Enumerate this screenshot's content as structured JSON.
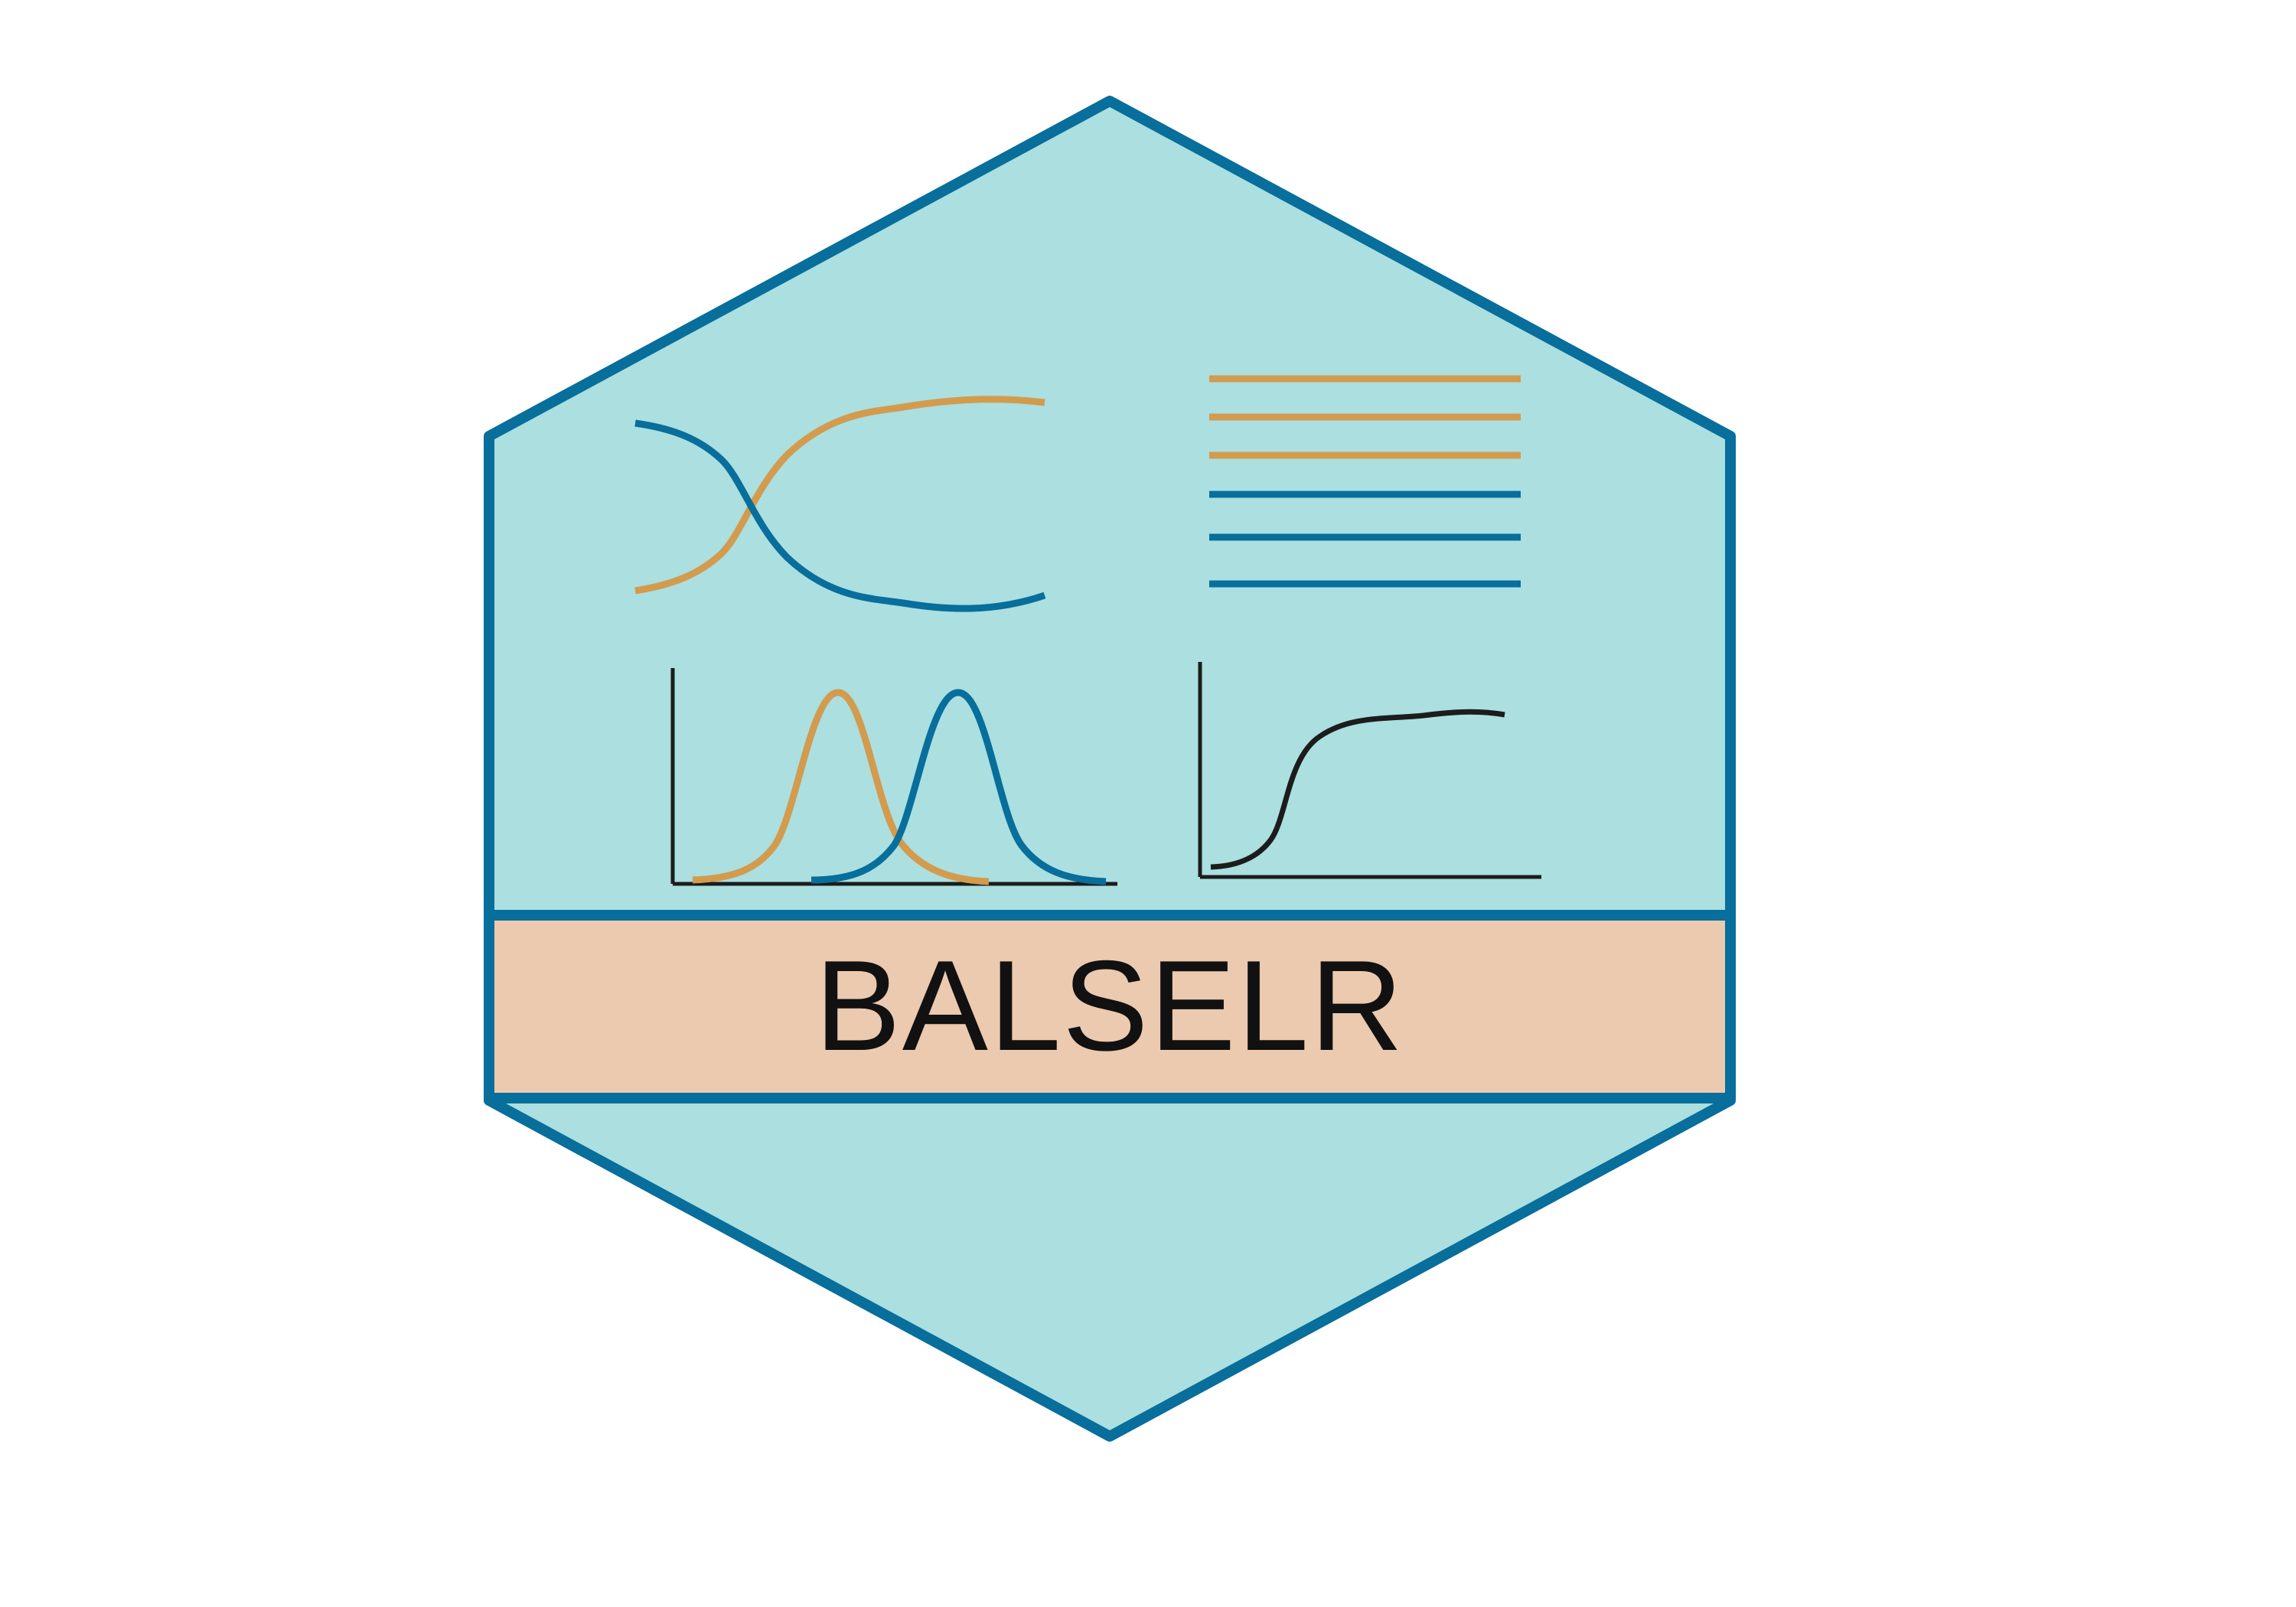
{
  "logo": {
    "title": "BALSELR",
    "colors": {
      "hex_fill": "#abdfe0",
      "hex_border": "#086e9b",
      "banner_fill": "#ebcab0",
      "accent_orange": "#d39b4d",
      "accent_blue": "#086e9b",
      "axis": "#1c1c1c"
    },
    "icons": [
      "crossing-curves-icon",
      "horizontal-lines-icon",
      "two-density-curves-icon",
      "sigmoid-curve-icon"
    ]
  }
}
